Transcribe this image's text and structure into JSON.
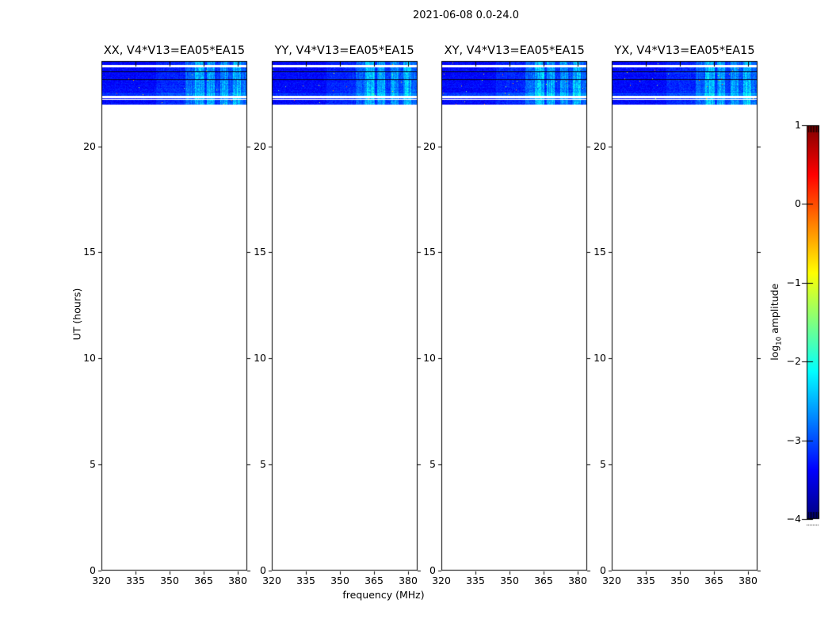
{
  "figure": {
    "suptitle": "2021-06-08 0.0-24.0"
  },
  "chart_data": {
    "type": "heatmap",
    "title": "2021-06-08 0.0-24.0",
    "xlabel": "frequency (MHz)",
    "ylabel": "UT (hours)",
    "x_range": [
      320,
      384.2
    ],
    "y_range": [
      0,
      24
    ],
    "grid": false,
    "panels": [
      {
        "polarization": "XX",
        "title": "XX, V4*V13=EA05*EA15"
      },
      {
        "polarization": "YY",
        "title": "YY, V4*V13=EA05*EA15"
      },
      {
        "polarization": "XY",
        "title": "XY, V4*V13=EA05*EA15"
      },
      {
        "polarization": "YX",
        "title": "YX, V4*V13=EA05*EA15"
      }
    ],
    "x_ticks": [
      {
        "label": "320",
        "value": 320
      },
      {
        "label": "335",
        "value": 335
      },
      {
        "label": "350",
        "value": 350
      },
      {
        "label": "365",
        "value": 365
      },
      {
        "label": "380",
        "value": 380
      }
    ],
    "y_ticks": [
      {
        "label": "0",
        "value": 0
      },
      {
        "label": "5",
        "value": 5
      },
      {
        "label": "10",
        "value": 10
      },
      {
        "label": "15",
        "value": 15
      },
      {
        "label": "20",
        "value": 20
      }
    ],
    "colorbar": {
      "label": "log10 amplitude",
      "label_parts": {
        "pre": "log",
        "sub": "10",
        "post": " amplitude"
      },
      "colormap": "jet",
      "range": [
        -4,
        1
      ],
      "ticks": [
        {
          "label": "1",
          "value": 1
        },
        {
          "label": "0",
          "value": 0
        },
        {
          "label": "−1",
          "value": -1
        },
        {
          "label": "−2",
          "value": -2
        },
        {
          "label": "−3",
          "value": -3
        },
        {
          "label": "−4",
          "value": -4
        }
      ]
    },
    "data_coverage": {
      "description": "Waterfall amplitude data only between ~22.0 and 24.0 UT; rest of the 0-24 h range is blank. Background noise ~10^-3.3, strong RFI brightening between ~357 and 384 MHz, dark low-amplitude rows separating scans.",
      "segments_ut": [
        {
          "ut": [
            23.83,
            23.97
          ],
          "kind": "data"
        },
        {
          "ut": [
            23.72,
            23.83
          ],
          "kind": "gap"
        },
        {
          "ut": [
            23.52,
            23.72
          ],
          "kind": "data"
        },
        {
          "ut": [
            23.48,
            23.52
          ],
          "kind": "dark"
        },
        {
          "ut": [
            23.16,
            23.48
          ],
          "kind": "data"
        },
        {
          "ut": [
            23.11,
            23.16
          ],
          "kind": "dark"
        },
        {
          "ut": [
            22.36,
            23.11
          ],
          "kind": "data",
          "hot_bottom": true
        },
        {
          "ut": [
            22.28,
            22.36
          ],
          "kind": "gap"
        },
        {
          "ut": [
            22.23,
            22.28
          ],
          "kind": "data"
        },
        {
          "ut": [
            22.19,
            22.23
          ],
          "kind": "gap"
        },
        {
          "ut": [
            21.97,
            22.19
          ],
          "kind": "data"
        }
      ],
      "base_log10_amplitude": -3.35,
      "noise_sigma": 0.22,
      "rfi_bands_mhz": [
        {
          "f0": 344,
          "f1": 357,
          "boost": 0.15
        },
        {
          "f0": 357,
          "f1": 361,
          "boost": 0.45
        },
        {
          "f0": 361,
          "f1": 365.5,
          "boost": 0.85
        },
        {
          "f0": 365.5,
          "f1": 366.5,
          "boost": 0.2
        },
        {
          "f0": 366.5,
          "f1": 370,
          "boost": 0.75
        },
        {
          "f0": 370,
          "f1": 372.5,
          "boost": 0.25
        },
        {
          "f0": 372.5,
          "f1": 376,
          "boost": 0.7
        },
        {
          "f0": 376,
          "f1": 378,
          "boost": 0.35
        },
        {
          "f0": 378,
          "f1": 381.5,
          "boost": 0.85
        },
        {
          "f0": 381.5,
          "f1": 384.2,
          "boost": 0.45
        }
      ]
    }
  }
}
